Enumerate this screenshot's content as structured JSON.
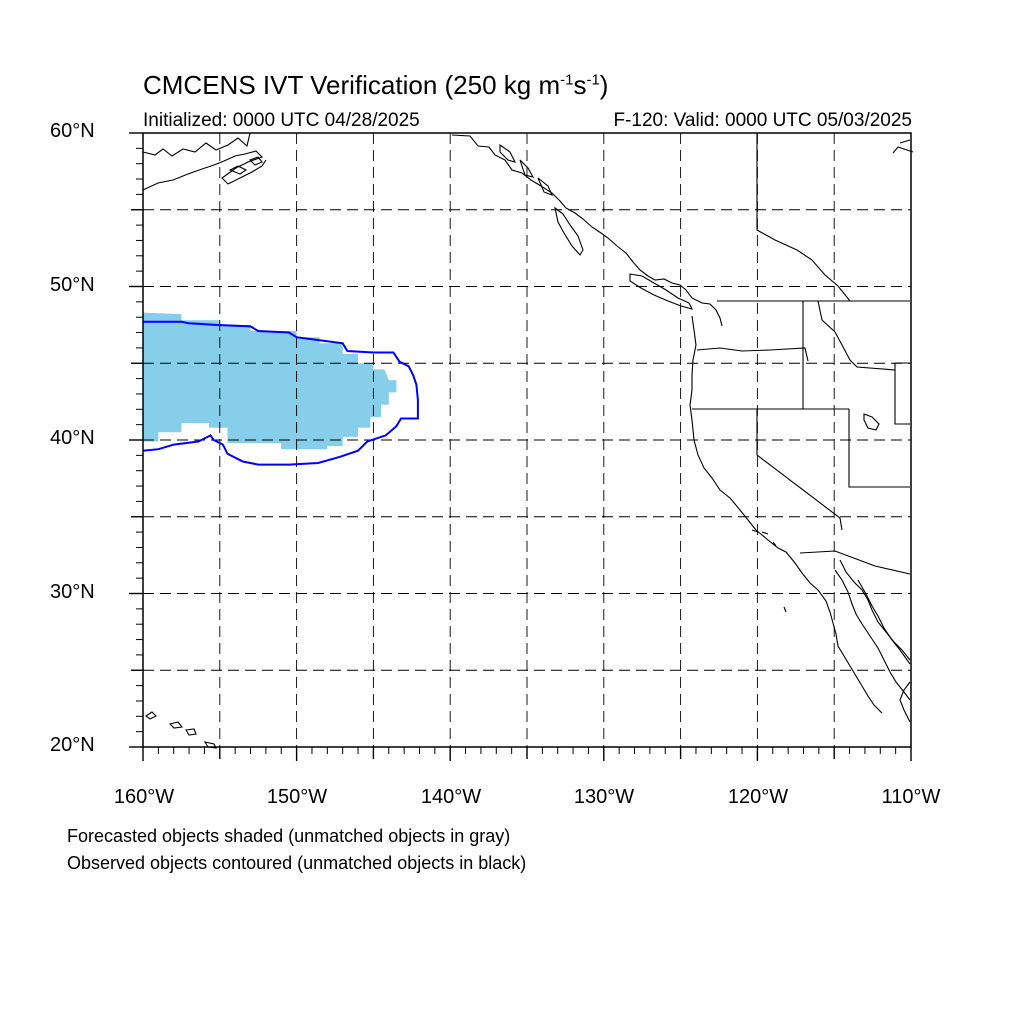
{
  "title_main": "CMCENS IVT Verification (250 kg m",
  "title_sup1": "-1",
  "title_mid": "s",
  "title_sup2": "-1",
  "title_end": ")",
  "initialized": "Initialized: 0000 UTC 04/28/2025",
  "valid": "F-120: Valid: 0000 UTC 05/03/2025",
  "lat_labels": [
    "60°N",
    "50°N",
    "40°N",
    "30°N",
    "20°N"
  ],
  "lon_labels": [
    "160°W",
    "150°W",
    "140°W",
    "130°W",
    "120°W",
    "110°W"
  ],
  "note_forecast": "Forecasted objects shaded (unmatched objects in gray)",
  "note_observed": "Observed objects contoured (unmatched objects in black)",
  "colors": {
    "forecast_fill": "#87ceeb",
    "observed_contour": "#0000ff",
    "grid": "#000000",
    "coast": "#000000"
  },
  "chart_data": {
    "type": "map",
    "projection": "equirectangular",
    "lon_range": [
      -160,
      -110
    ],
    "lat_range": [
      20,
      60
    ],
    "grid_lon_step": 5,
    "grid_lat_step": 5,
    "forecast_object": {
      "matched": true,
      "outline": [
        [
          -160,
          48.3
        ],
        [
          -157.5,
          48.2
        ],
        [
          -157.5,
          47.8
        ],
        [
          -155,
          47.8
        ],
        [
          -155,
          47.5
        ],
        [
          -153,
          47.5
        ],
        [
          -153,
          47.1
        ],
        [
          -150,
          47.1
        ],
        [
          -150,
          46.7
        ],
        [
          -148.5,
          46.7
        ],
        [
          -148.5,
          46.3
        ],
        [
          -147,
          46.3
        ],
        [
          -147,
          45.6
        ],
        [
          -146,
          45.6
        ],
        [
          -146,
          45.0
        ],
        [
          -145,
          45.0
        ],
        [
          -145,
          44.6
        ],
        [
          -144.3,
          44.6
        ],
        [
          -144,
          43.9
        ],
        [
          -143.5,
          43.9
        ],
        [
          -143.5,
          43.1
        ],
        [
          -144,
          43.1
        ],
        [
          -144,
          42.3
        ],
        [
          -144.5,
          42.3
        ],
        [
          -144.5,
          41.5
        ],
        [
          -145.2,
          41.5
        ],
        [
          -145.2,
          40.8
        ],
        [
          -146,
          40.8
        ],
        [
          -146,
          40.2
        ],
        [
          -147,
          40.2
        ],
        [
          -147,
          39.6
        ],
        [
          -148,
          39.6
        ],
        [
          -148,
          39.4
        ],
        [
          -150,
          39.4
        ],
        [
          -151,
          39.4
        ],
        [
          -151,
          39.8
        ],
        [
          -154.5,
          39.8
        ],
        [
          -154.5,
          40.8
        ],
        [
          -155.7,
          40.8
        ],
        [
          -155.7,
          41.1
        ],
        [
          -157.5,
          41.1
        ],
        [
          -157.5,
          40.5
        ],
        [
          -159,
          40.5
        ],
        [
          -159,
          39.9
        ],
        [
          -160,
          39.9
        ]
      ]
    },
    "observed_object": {
      "matched": true,
      "outline": [
        [
          -160,
          47.7
        ],
        [
          -157.5,
          47.7
        ],
        [
          -157,
          47.6
        ],
        [
          -155.3,
          47.5
        ],
        [
          -153,
          47.4
        ],
        [
          -152.5,
          47.1
        ],
        [
          -150.5,
          47.0
        ],
        [
          -150,
          46.7
        ],
        [
          -148.5,
          46.5
        ],
        [
          -147,
          46.3
        ],
        [
          -146.7,
          45.8
        ],
        [
          -145,
          45.7
        ],
        [
          -143.7,
          45.7
        ],
        [
          -143.3,
          45.1
        ],
        [
          -142.7,
          44.8
        ],
        [
          -142.4,
          44.2
        ],
        [
          -142.2,
          43.6
        ],
        [
          -142.1,
          42.6
        ],
        [
          -142.1,
          41.4
        ],
        [
          -143.2,
          41.4
        ],
        [
          -143.5,
          40.9
        ],
        [
          -144.2,
          40.3
        ],
        [
          -145.4,
          39.9
        ],
        [
          -146,
          39.3
        ],
        [
          -147.2,
          38.9
        ],
        [
          -148.6,
          38.5
        ],
        [
          -150.5,
          38.4
        ],
        [
          -152.5,
          38.4
        ],
        [
          -153.5,
          38.6
        ],
        [
          -154.5,
          39.1
        ],
        [
          -154.8,
          39.7
        ],
        [
          -155.4,
          40.0
        ],
        [
          -155.6,
          40.3
        ],
        [
          -156.4,
          39.9
        ],
        [
          -158,
          39.7
        ],
        [
          -159,
          39.4
        ],
        [
          -160,
          39.3
        ]
      ]
    }
  }
}
